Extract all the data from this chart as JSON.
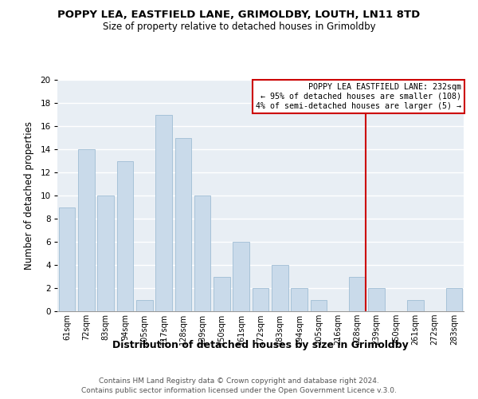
{
  "title1": "POPPY LEA, EASTFIELD LANE, GRIMOLDBY, LOUTH, LN11 8TD",
  "title2": "Size of property relative to detached houses in Grimoldby",
  "xlabel": "Distribution of detached houses by size in Grimoldby",
  "ylabel": "Number of detached properties",
  "footer1": "Contains HM Land Registry data © Crown copyright and database right 2024.",
  "footer2": "Contains public sector information licensed under the Open Government Licence v.3.0.",
  "bar_labels": [
    "61sqm",
    "72sqm",
    "83sqm",
    "94sqm",
    "105sqm",
    "117sqm",
    "128sqm",
    "139sqm",
    "150sqm",
    "161sqm",
    "172sqm",
    "183sqm",
    "194sqm",
    "205sqm",
    "216sqm",
    "228sqm",
    "239sqm",
    "250sqm",
    "261sqm",
    "272sqm",
    "283sqm"
  ],
  "bar_values": [
    9,
    14,
    10,
    13,
    1,
    17,
    15,
    10,
    3,
    6,
    2,
    4,
    2,
    1,
    0,
    3,
    2,
    0,
    1,
    0,
    2
  ],
  "bar_color": "#c9daea",
  "bar_edge_color": "#9fbdd4",
  "vline_color": "#cc0000",
  "annotation_title": "POPPY LEA EASTFIELD LANE: 232sqm",
  "annotation_line1": "← 95% of detached houses are smaller (108)",
  "annotation_line2": "4% of semi-detached houses are larger (5) →",
  "annotation_box_color": "#ffffff",
  "annotation_border_color": "#cc0000",
  "ylim": [
    0,
    20
  ],
  "yticks": [
    0,
    2,
    4,
    6,
    8,
    10,
    12,
    14,
    16,
    18,
    20
  ],
  "background_color": "#ffffff",
  "plot_bg_color": "#e8eef4"
}
